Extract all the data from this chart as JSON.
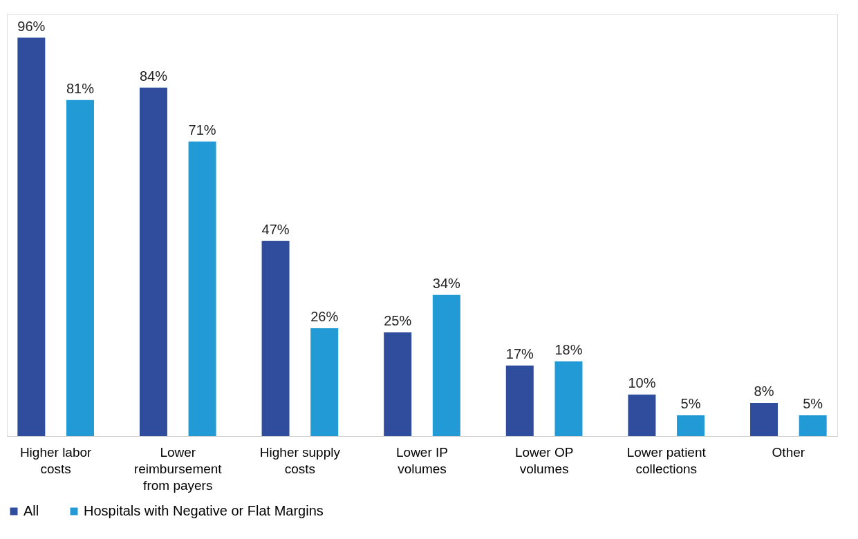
{
  "chart_data": {
    "type": "bar",
    "categories": [
      "Higher labor costs",
      "Lower reimbursement from payers",
      "Higher supply costs",
      "Lower IP volumes",
      "Lower OP volumes",
      "Lower patient collections",
      "Other"
    ],
    "series": [
      {
        "name": "All",
        "color": "#2f4d9c",
        "values": [
          96,
          84,
          47,
          25,
          17,
          10,
          8
        ],
        "value_labels": [
          "96%",
          "84%",
          "47%",
          "25%",
          "17%",
          "10%",
          "8%"
        ]
      },
      {
        "name": "Hospitals with Negative or Flat Margins",
        "color": "#219ad6",
        "values": [
          81,
          71,
          26,
          34,
          18,
          5,
          5
        ],
        "value_labels": [
          "81%",
          "71%",
          "26%",
          "34%",
          "18%",
          "5%",
          "5%"
        ]
      }
    ],
    "legend": "bottom",
    "grid": false
  }
}
